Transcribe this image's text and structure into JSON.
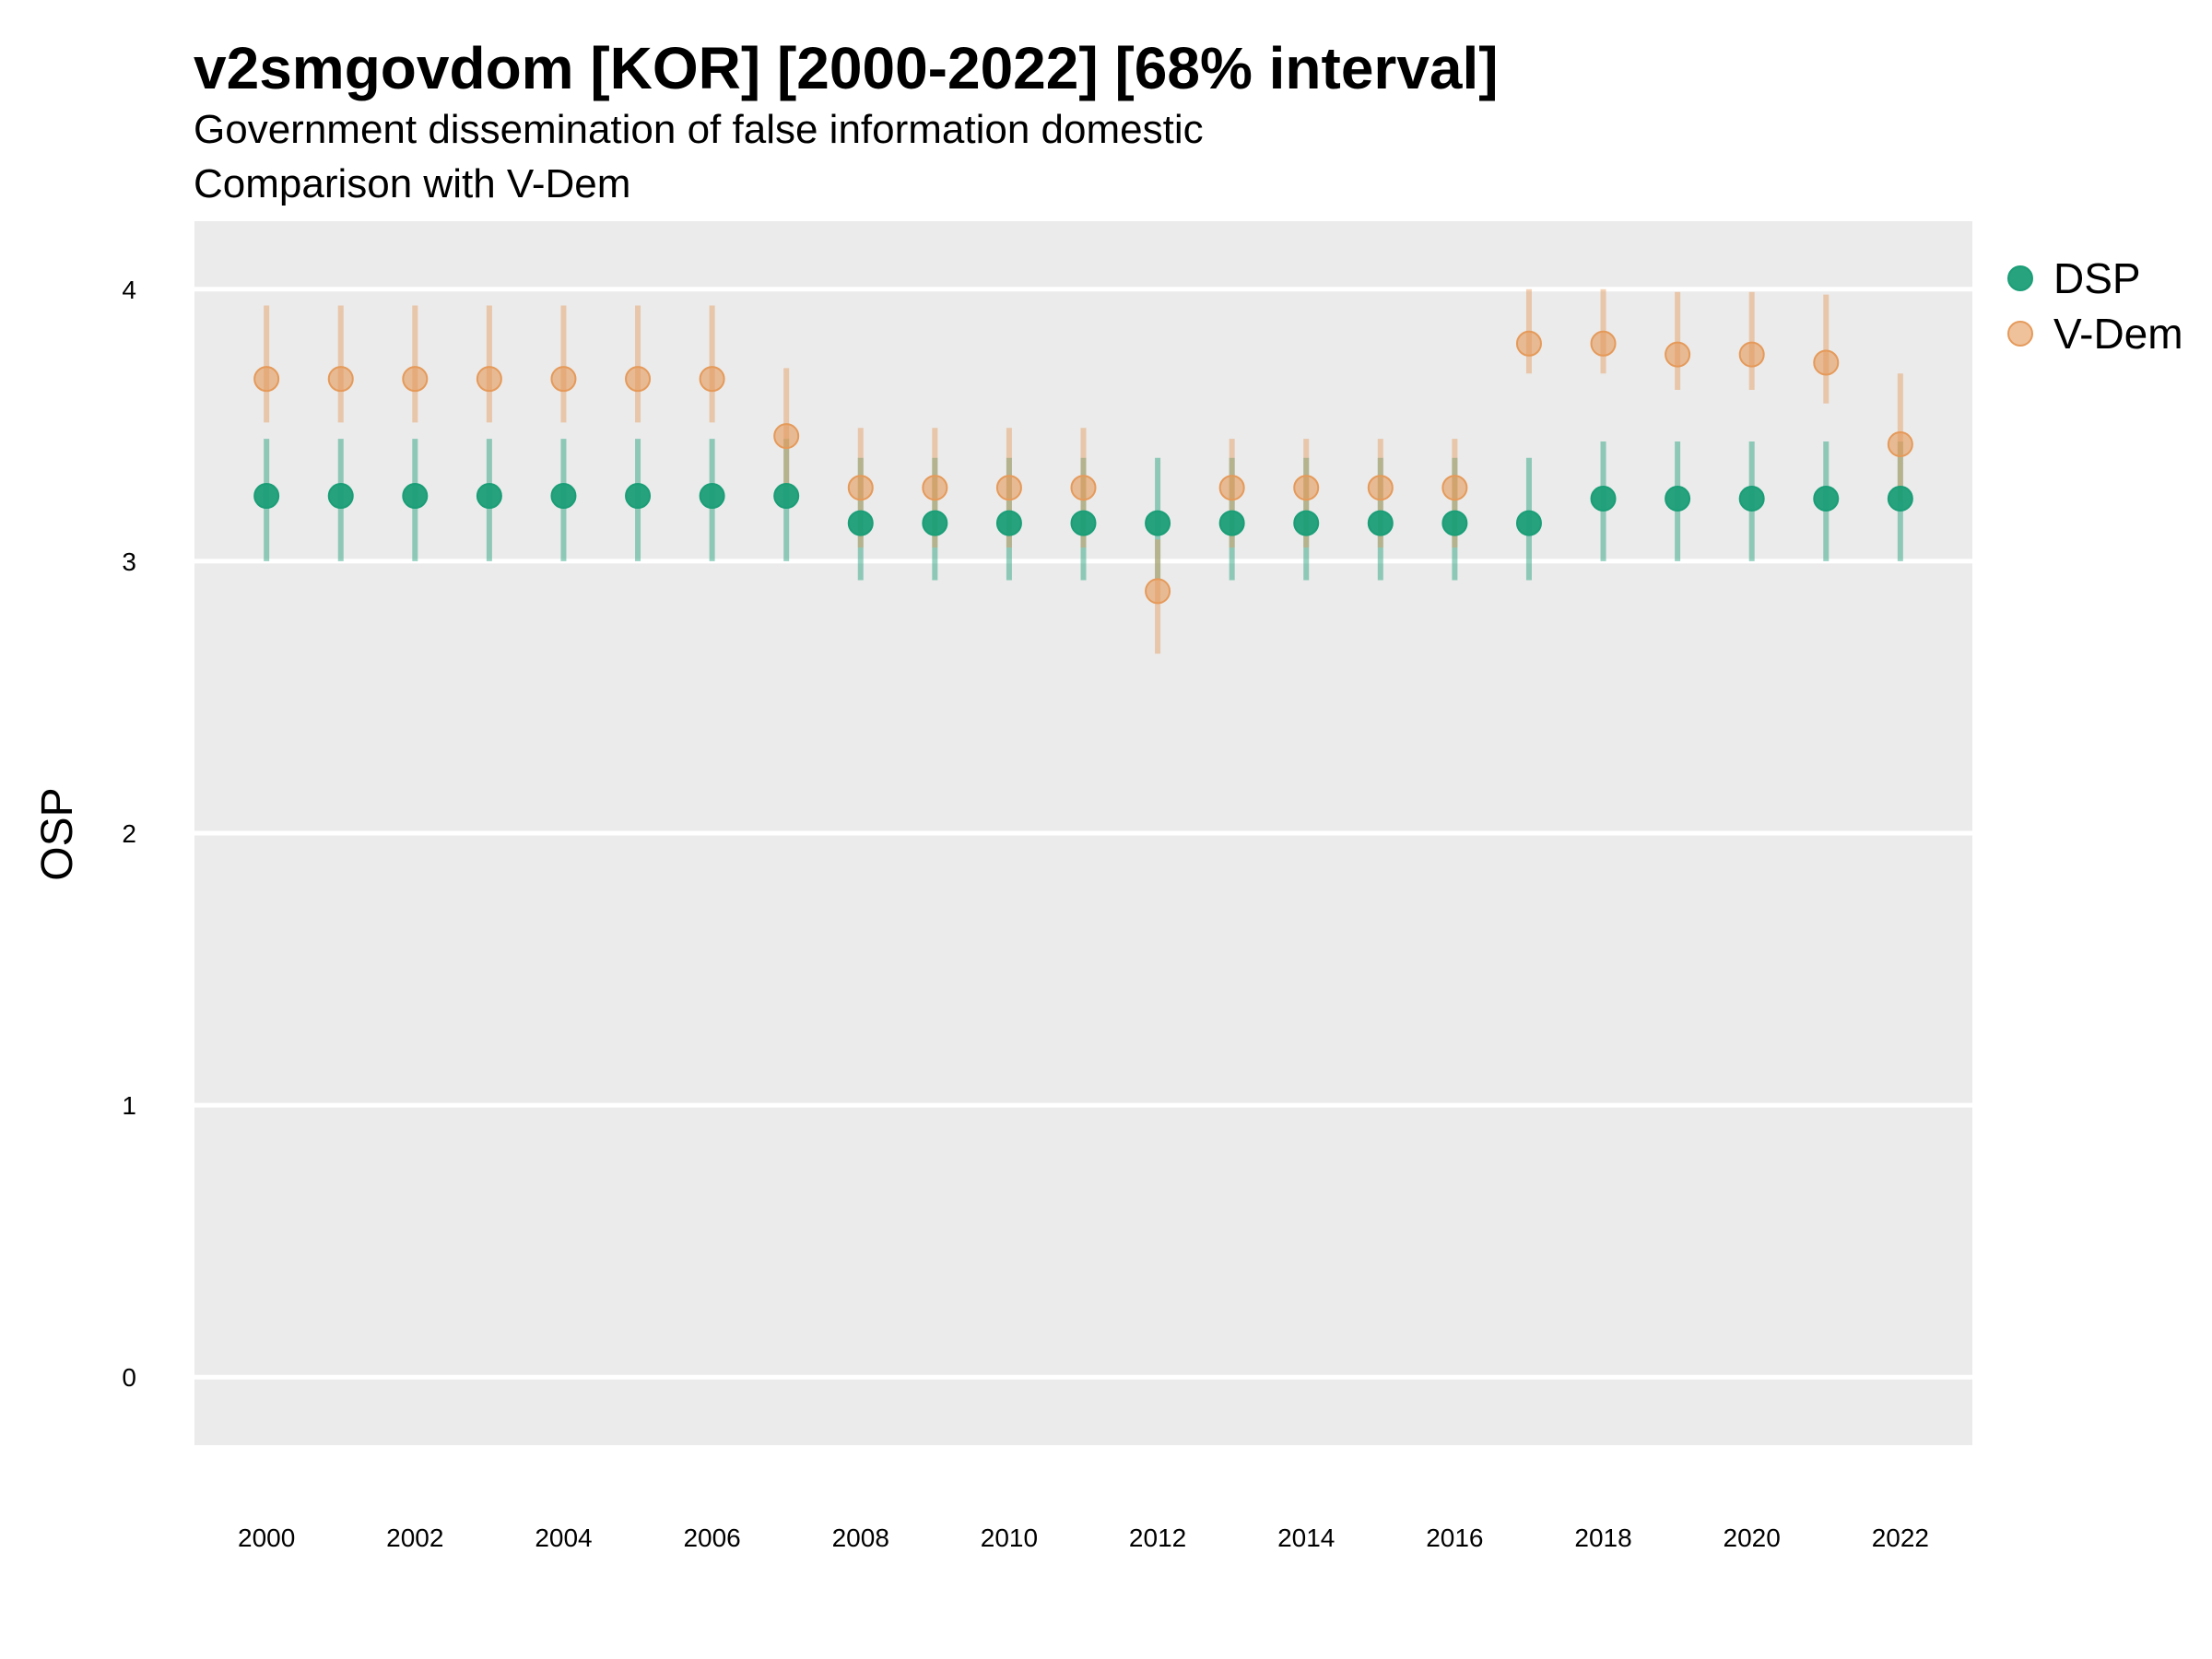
{
  "chart_data": {
    "type": "scatter",
    "title": "v2smgovdom [KOR] [2000-2022] [68% interval]",
    "subtitle_lines": [
      "Government dissemination of false information domestic",
      "Comparison with V-Dem"
    ],
    "xlabel": "",
    "ylabel": "OSP",
    "ylim": [
      -0.25,
      4.25
    ],
    "y_ticks": [
      "0",
      "1",
      "2",
      "3",
      "4"
    ],
    "x": [
      2000,
      2001,
      2002,
      2003,
      2004,
      2005,
      2006,
      2007,
      2008,
      2009,
      2010,
      2011,
      2012,
      2013,
      2014,
      2015,
      2016,
      2017,
      2018,
      2019,
      2020,
      2021,
      2022
    ],
    "x_ticks": [
      "2000",
      "2002",
      "2004",
      "2006",
      "2008",
      "2010",
      "2012",
      "2014",
      "2016",
      "2018",
      "2020",
      "2022"
    ],
    "grid": true,
    "legend_position": "right",
    "series": [
      {
        "name": "DSP",
        "color": "#1B9E77",
        "values": [
          3.24,
          3.24,
          3.24,
          3.24,
          3.24,
          3.24,
          3.24,
          3.24,
          3.14,
          3.14,
          3.14,
          3.14,
          3.14,
          3.14,
          3.14,
          3.14,
          3.14,
          3.14,
          3.23,
          3.23,
          3.23,
          3.23,
          3.23
        ],
        "lower": [
          3.0,
          3.0,
          3.0,
          3.0,
          3.0,
          3.0,
          3.0,
          3.0,
          2.93,
          2.93,
          2.93,
          2.93,
          2.93,
          2.93,
          2.93,
          2.93,
          2.93,
          2.93,
          3.0,
          3.0,
          3.0,
          3.0,
          3.0
        ],
        "upper": [
          3.45,
          3.45,
          3.45,
          3.45,
          3.45,
          3.45,
          3.45,
          3.45,
          3.38,
          3.38,
          3.38,
          3.38,
          3.38,
          3.38,
          3.38,
          3.38,
          3.38,
          3.38,
          3.44,
          3.44,
          3.44,
          3.44,
          3.44
        ]
      },
      {
        "name": "V-Dem",
        "color": "#E59A5A",
        "values": [
          3.67,
          3.67,
          3.67,
          3.67,
          3.67,
          3.67,
          3.67,
          3.46,
          3.27,
          3.27,
          3.27,
          3.27,
          2.89,
          3.27,
          3.27,
          3.27,
          3.27,
          3.8,
          3.8,
          3.76,
          3.76,
          3.73,
          3.43
        ],
        "lower": [
          3.51,
          3.51,
          3.51,
          3.51,
          3.51,
          3.51,
          3.51,
          3.27,
          3.05,
          3.05,
          3.05,
          3.05,
          2.66,
          3.05,
          3.05,
          3.05,
          3.05,
          3.69,
          3.69,
          3.63,
          3.63,
          3.58,
          3.22
        ],
        "upper": [
          3.94,
          3.94,
          3.94,
          3.94,
          3.94,
          3.94,
          3.94,
          3.71,
          3.49,
          3.49,
          3.49,
          3.49,
          3.08,
          3.45,
          3.45,
          3.45,
          3.45,
          4.0,
          4.0,
          3.99,
          3.99,
          3.98,
          3.69
        ]
      }
    ]
  }
}
